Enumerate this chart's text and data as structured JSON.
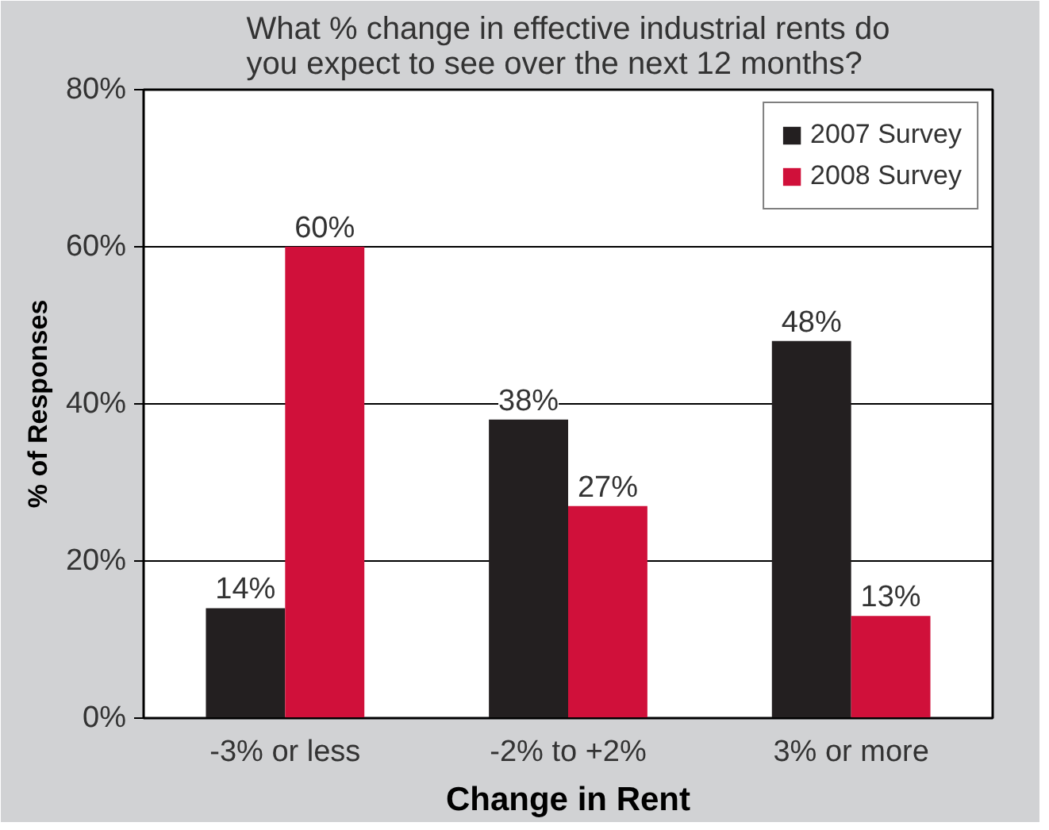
{
  "chart_data": {
    "type": "bar",
    "title": "What % change in effective industrial rents do\nyou expect to see over the next 12 months?",
    "xlabel": "Change in Rent",
    "ylabel": "% of Responses",
    "categories": [
      "-3% or less",
      "-2% to +2%",
      "3% or more"
    ],
    "series": [
      {
        "name": "2007 Survey",
        "color": "#231f20",
        "values": [
          14,
          38,
          48
        ],
        "value_labels": [
          "14%",
          "38%",
          "48%"
        ]
      },
      {
        "name": "2008 Survey",
        "color": "#d0103a",
        "values": [
          60,
          27,
          13
        ],
        "value_labels": [
          "60%",
          "27%",
          "13%"
        ]
      }
    ],
    "ylim": [
      0,
      80
    ],
    "yticks": [
      {
        "value": 0,
        "label": "0%"
      },
      {
        "value": 20,
        "label": "20%"
      },
      {
        "value": 40,
        "label": "40%"
      },
      {
        "value": 60,
        "label": "60%"
      },
      {
        "value": 80,
        "label": "80%"
      }
    ],
    "grid": "y",
    "legend": "top right"
  }
}
